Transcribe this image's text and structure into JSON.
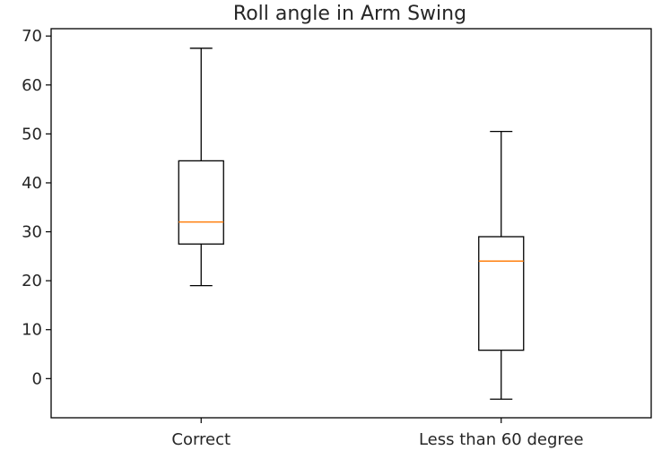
{
  "chart_data": {
    "type": "box",
    "title": "Roll angle in Arm Swing",
    "xlabel": "",
    "ylabel": "",
    "categories": [
      "Correct",
      "Less than 60 degree"
    ],
    "boxes": [
      {
        "label": "Correct",
        "whisker_low": 19,
        "q1": 27.5,
        "median": 32,
        "q3": 44.5,
        "whisker_high": 67.5
      },
      {
        "label": "Less than 60 degree",
        "whisker_low": -4.2,
        "q1": 5.8,
        "median": 24,
        "q3": 29,
        "whisker_high": 50.5
      }
    ],
    "ylim": [
      -8,
      71.5
    ],
    "yticks": [
      0,
      10,
      20,
      30,
      40,
      50,
      60,
      70
    ],
    "grid": false,
    "legend": "none",
    "colors": {
      "box": "#000000",
      "median": "#ff7f0e",
      "axis": "#000000"
    }
  }
}
